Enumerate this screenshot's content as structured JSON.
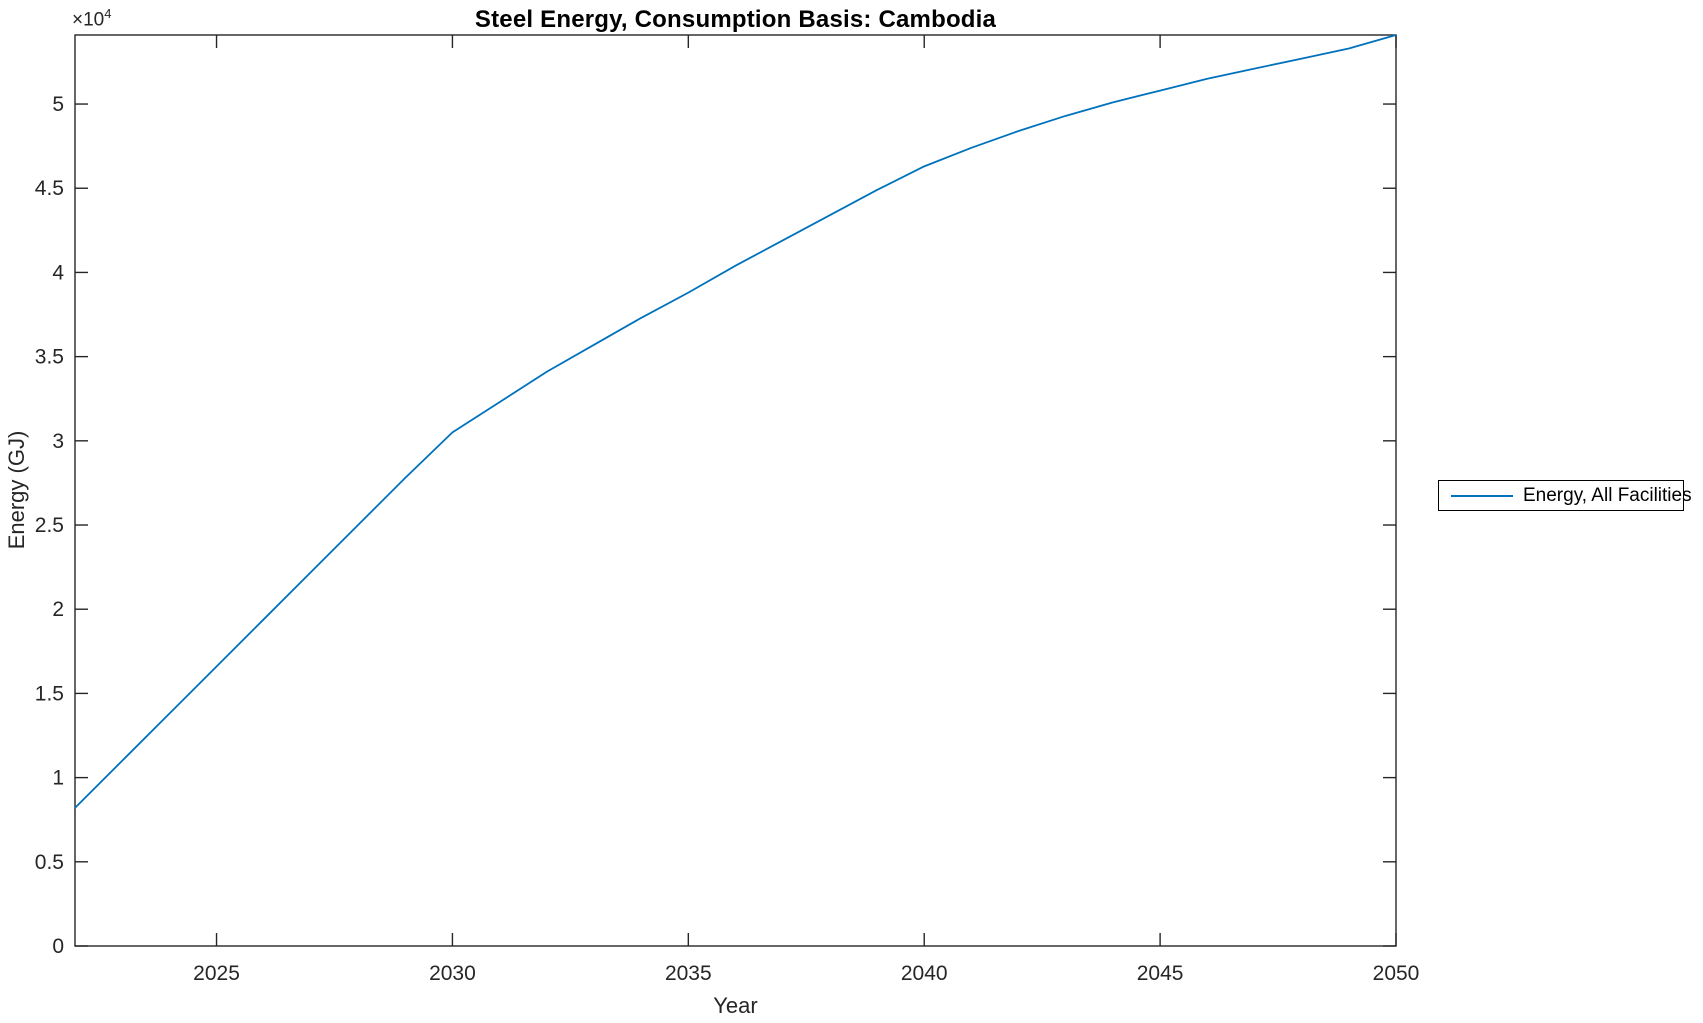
{
  "figure": {
    "title": "Steel Energy, Consumption Basis: Cambodia",
    "x_axis_label": "Year",
    "y_axis_label": "Energy (GJ)",
    "y_multiplier_base": "×10",
    "y_multiplier_exponent": "4",
    "legend": {
      "position": "right-outside",
      "items": [
        {
          "label": "Energy, All Facilities",
          "color": "#0072BD"
        }
      ]
    }
  },
  "colors": {
    "line": "#0072BD",
    "axis": "#262626",
    "tick_text": "#262626",
    "background": "#ffffff"
  },
  "chart_data": {
    "type": "line",
    "title": "Steel Energy, Consumption Basis: Cambodia",
    "xlabel": "Year",
    "ylabel": "Energy (GJ)",
    "grid": false,
    "legend_position": "right-outside",
    "xlim": [
      2022,
      2050
    ],
    "ylim": [
      0,
      54100
    ],
    "y_axis_multiplier": "x10^4",
    "x_ticks": [
      2025,
      2030,
      2035,
      2040,
      2045,
      2050
    ],
    "y_ticks": {
      "values": [
        0,
        5000,
        10000,
        15000,
        20000,
        25000,
        30000,
        35000,
        40000,
        45000,
        50000
      ],
      "labels": [
        "0",
        "0.5",
        "1",
        "1.5",
        "2",
        "2.5",
        "3",
        "3.5",
        "4",
        "4.5",
        "5"
      ]
    },
    "x": [
      2022,
      2023,
      2024,
      2025,
      2026,
      2027,
      2028,
      2029,
      2030,
      2031,
      2032,
      2033,
      2034,
      2035,
      2036,
      2037,
      2038,
      2039,
      2040,
      2041,
      2042,
      2043,
      2044,
      2045,
      2046,
      2047,
      2048,
      2049,
      2050
    ],
    "series": [
      {
        "name": "Energy, All Facilities",
        "color": "#0072BD",
        "values": [
          8200,
          11000,
          13800,
          16600,
          19400,
          22200,
          25000,
          27800,
          30500,
          32300,
          34100,
          35700,
          37300,
          38800,
          40400,
          41900,
          43400,
          44900,
          46300,
          47400,
          48400,
          49300,
          50100,
          50800,
          51500,
          52100,
          52700,
          53300,
          54100
        ]
      }
    ]
  }
}
